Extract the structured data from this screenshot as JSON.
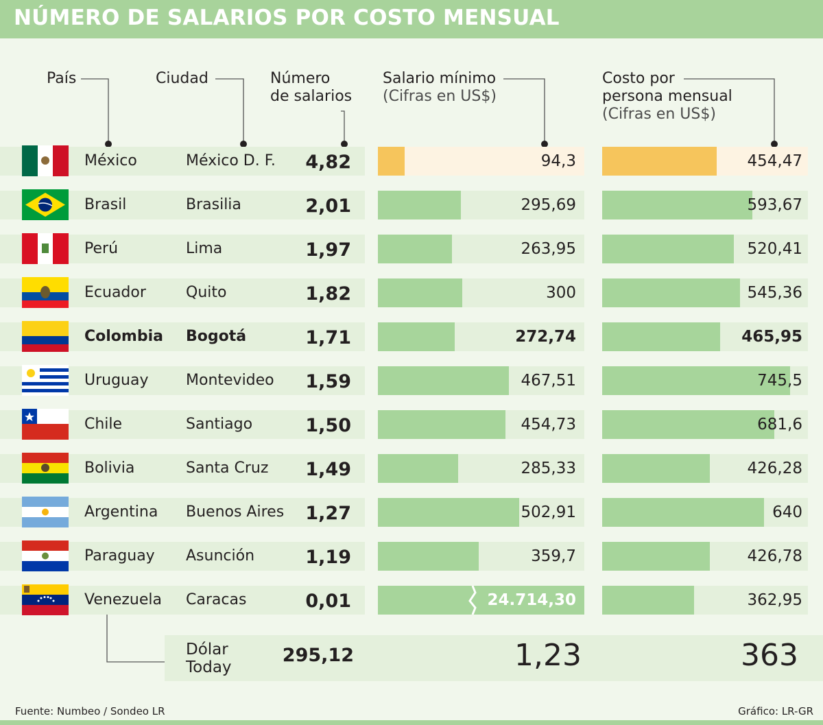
{
  "title": "NÚMERO DE SALARIOS POR COSTO MENSUAL",
  "headers": {
    "pais": "País",
    "ciudad": "Ciudad",
    "numero_line1": "Número",
    "numero_line2": "de salarios",
    "salario_line1": "Salario mínimo",
    "salario_line2": "(Cifras en US$)",
    "costo_line1": "Costo por",
    "costo_line2": "persona mensual",
    "costo_line3": "(Cifras en US$)"
  },
  "colors": {
    "title_bar": "#a8d39b",
    "bar": "#a7d59b",
    "highlight_bar": "#f6c55c",
    "highlight_bg": "#fdf3e2",
    "row_bg": "#e4f0dc"
  },
  "chart_data": {
    "type": "bar",
    "categories": [
      "México",
      "Brasil",
      "Perú",
      "Ecuador",
      "Colombia",
      "Uruguay",
      "Chile",
      "Bolivia",
      "Argentina",
      "Paraguay",
      "Venezuela"
    ],
    "cities": [
      "México D. F.",
      "Brasilia",
      "Lima",
      "Quito",
      "Bogotá",
      "Montevideo",
      "Santiago",
      "Santa Cruz",
      "Buenos Aires",
      "Asunción",
      "Caracas"
    ],
    "numero_salarios_labels": [
      "4,82",
      "2,01",
      "1,97",
      "1,82",
      "1,71",
      "1,59",
      "1,50",
      "1,49",
      "1,27",
      "1,19",
      "0,01"
    ],
    "series": [
      {
        "name": "Salario mínimo",
        "values": [
          94.3,
          295.69,
          263.95,
          300,
          272.74,
          467.51,
          454.73,
          285.33,
          502.91,
          359.7,
          24714.3
        ],
        "labels": [
          "94,3",
          "295,69",
          "263,95",
          "300",
          "272,74",
          "467,51",
          "454,73",
          "285,33",
          "502,91",
          "359,7",
          "24.714,30"
        ],
        "axis_break_at": "Venezuela"
      },
      {
        "name": "Costo por persona mensual",
        "values": [
          454.47,
          593.67,
          520.41,
          545.36,
          465.95,
          745.5,
          681.6,
          426.28,
          640,
          426.78,
          362.95
        ],
        "labels": [
          "454,47",
          "593,67",
          "520,41",
          "545,36",
          "465,95",
          "745,5",
          "681,6",
          "426,28",
          "640",
          "426,78",
          "362,95"
        ]
      }
    ],
    "highlight_rows": {
      "Mexico": "México",
      "Colombia": "Colombia"
    }
  },
  "dollar_today": {
    "label_line1": "Dólar",
    "label_line2": "Today",
    "value1": "295,12",
    "value2": "1,23",
    "value3": "363"
  },
  "footer": {
    "source": "Fuente: Numbeo / Sondeo LR",
    "credit": "Gráfico: LR-GR"
  }
}
